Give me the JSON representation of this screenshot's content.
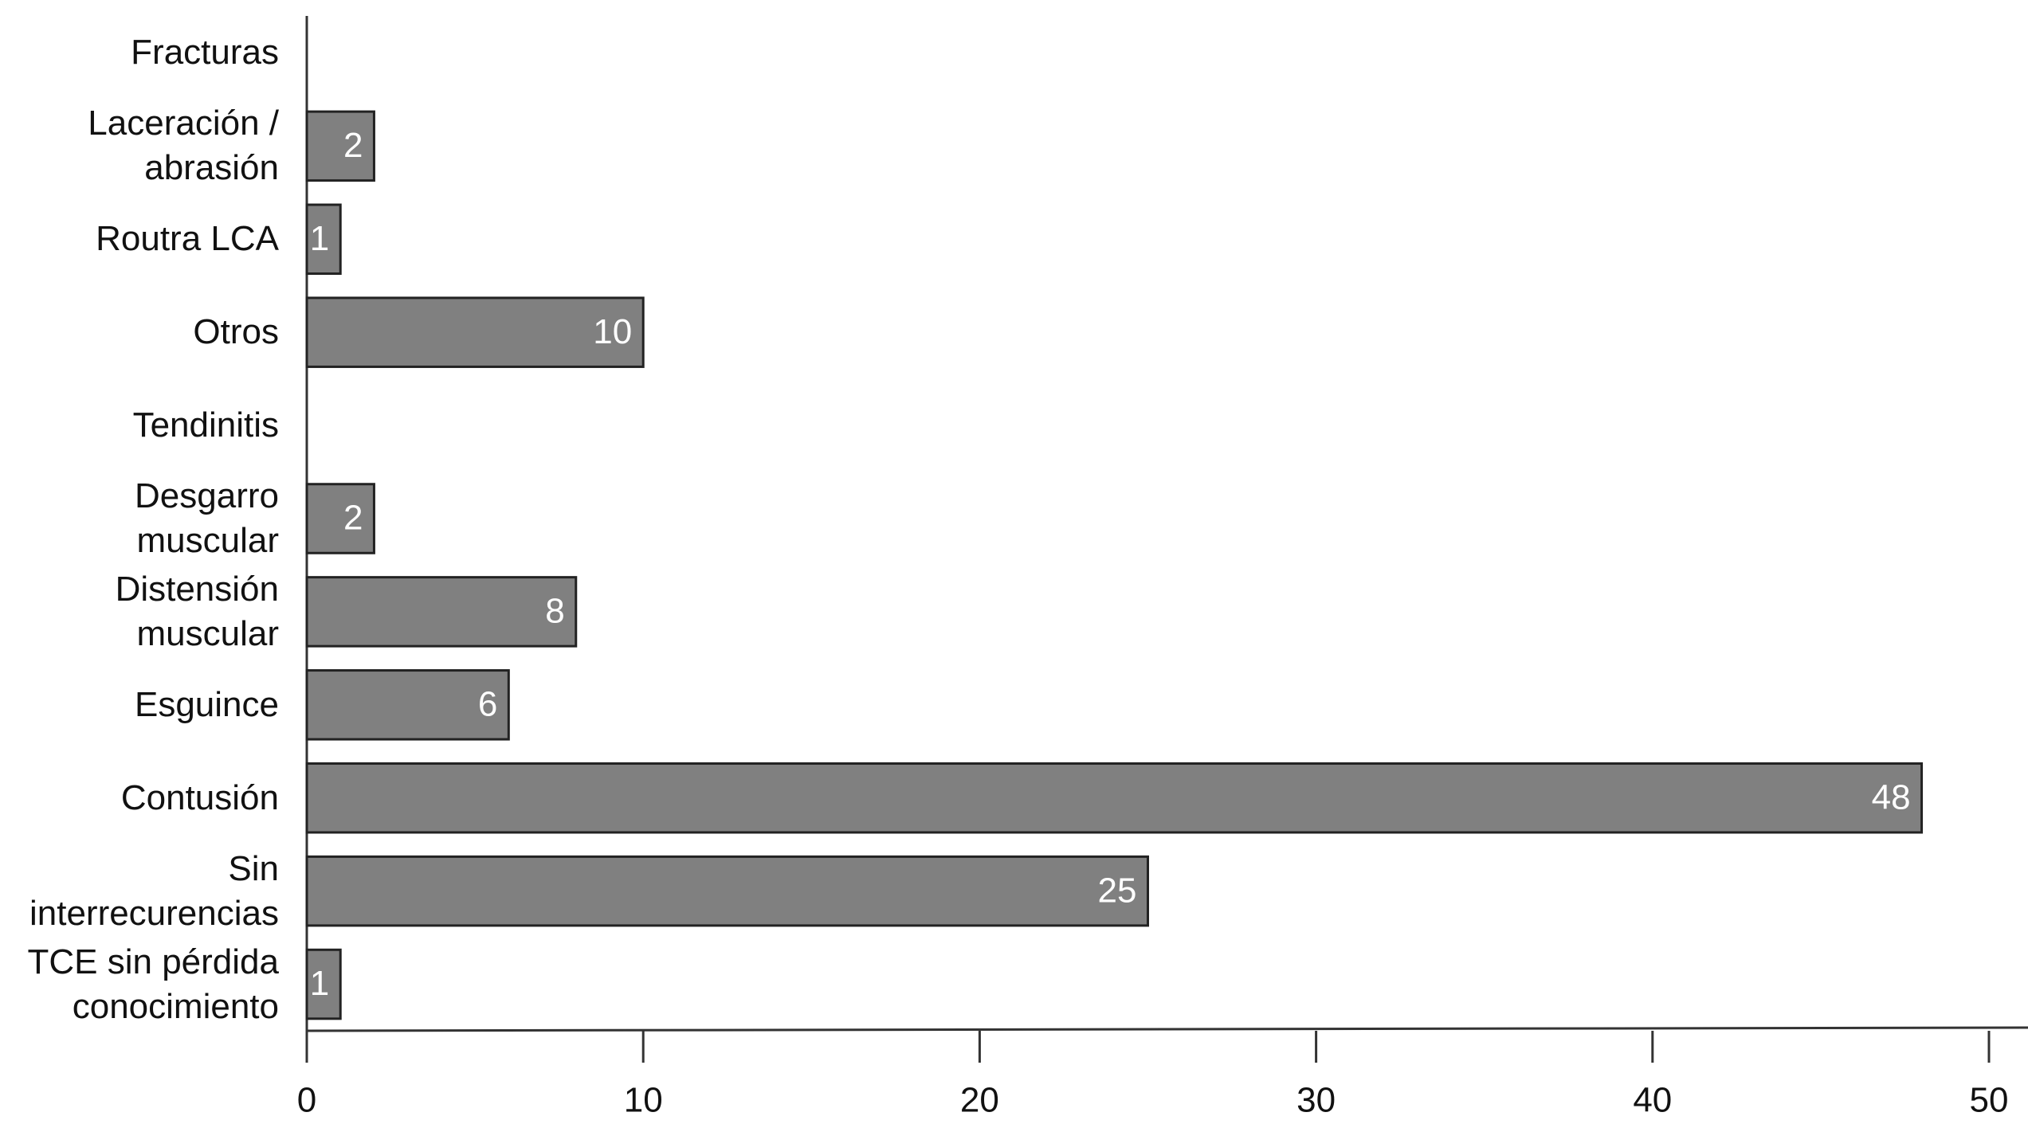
{
  "chart_data": {
    "type": "hbar",
    "categories": [
      "Fracturas",
      "Laceración / abrasión",
      "Routra LCA",
      "Otros",
      "Tendinitis",
      "Desgarro muscular",
      "Distensión muscular",
      "Esguince",
      "Contusión",
      "Sin interrecurencias",
      "TCE sin pérdida conocimiento"
    ],
    "values": [
      null,
      2,
      1,
      10,
      null,
      2,
      8,
      6,
      48,
      25,
      1
    ],
    "color": "#808080",
    "xlim": [
      0,
      50
    ],
    "xticks": [
      0,
      10,
      20,
      30,
      40,
      50
    ],
    "grid": false
  }
}
